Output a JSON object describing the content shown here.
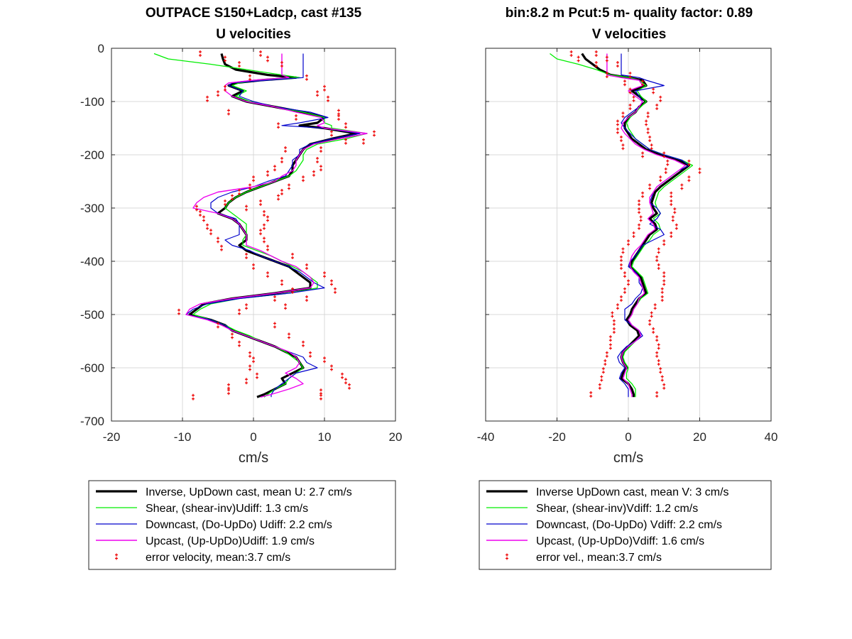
{
  "figure": {
    "left_title_line1": "OUTPACE S150+Ladcp, cast #135",
    "right_title_line1": "bin:8.2 m  Pcut:5 m- quality factor:  0.89"
  },
  "colors": {
    "inverse": "#000000",
    "shear": "#00ee00",
    "downcast": "#0000cc",
    "upcast": "#ee00ee",
    "error": "#ee0000",
    "grid": "#d9d9d9"
  },
  "chart_data": [
    {
      "type": "line",
      "title": "U velocities",
      "xlabel": "cm/s",
      "ylabel": "",
      "xlim": [
        -20,
        20
      ],
      "ylim": [
        -700,
        0
      ],
      "xticks": [
        "-20",
        "-10",
        "0",
        "10",
        "20"
      ],
      "yticks": [
        "0",
        "-100",
        "-200",
        "-300",
        "-400",
        "-500",
        "-600",
        "-700"
      ],
      "grid": true,
      "legend_position": "below",
      "legend": [
        "Inverse, UpDown cast, mean U:  2.7 cm/s",
        "Shear, (shear-inv)Udiff:  1.3 cm/s",
        "Downcast, (Do-UpDo) Udiff:  2.2 cm/s",
        "Upcast, (Up-UpDo)Udiff:  1.9 cm/s",
        "error velocity, mean:3.7 cm/s"
      ],
      "depth": [
        -10,
        -20,
        -30,
        -40,
        -50,
        -55,
        -60,
        -65,
        -70,
        -80,
        -90,
        -100,
        -110,
        -120,
        -130,
        -140,
        -145,
        -150,
        -160,
        -170,
        -180,
        -190,
        -200,
        -210,
        -220,
        -230,
        -240,
        -250,
        -260,
        -270,
        -280,
        -290,
        -300,
        -310,
        -320,
        -330,
        -340,
        -350,
        -360,
        -370,
        -380,
        -390,
        -400,
        -410,
        -420,
        -430,
        -440,
        -450,
        -460,
        -470,
        -480,
        -490,
        -500,
        -510,
        -520,
        -530,
        -540,
        -550,
        -560,
        -570,
        -580,
        -590,
        -600,
        -610,
        -620,
        -630,
        -640,
        -650,
        -655
      ],
      "series": [
        {
          "key": "inverse",
          "values": [
            -4.5,
            -4.3,
            -4.0,
            -2.5,
            2.0,
            6.0,
            1.0,
            -2.5,
            -3.5,
            -1.5,
            -3.0,
            -1.0,
            3.0,
            7.0,
            10.0,
            9.0,
            6.5,
            10.0,
            14.5,
            11.0,
            8.0,
            7.0,
            6.5,
            6.0,
            5.5,
            5.5,
            5.0,
            3.0,
            1.0,
            -1.0,
            -2.5,
            -3.5,
            -4.0,
            -5.0,
            -3.0,
            -2.0,
            -1.5,
            -1.0,
            -1.0,
            -2.0,
            -1.0,
            1.0,
            3.0,
            5.0,
            6.0,
            7.0,
            8.0,
            8.0,
            3.0,
            -3.0,
            -7.0,
            -8.0,
            -9.0,
            -6.0,
            -4.0,
            -3.0,
            -1.0,
            1.0,
            3.0,
            4.5,
            6.0,
            6.5,
            7.0,
            5.5,
            4.0,
            4.5,
            3.0,
            1.5,
            0.5
          ]
        },
        {
          "key": "shear",
          "values": [
            -14.0,
            -12.0,
            -6.0,
            -1.0,
            4.0,
            6.5,
            1.0,
            -2.0,
            -3.0,
            -1.0,
            -2.5,
            -0.5,
            3.0,
            7.0,
            10.0,
            10.0,
            11.0,
            11.0,
            16.0,
            13.0,
            9.0,
            7.5,
            7.0,
            7.0,
            6.5,
            6.0,
            5.0,
            3.0,
            1.0,
            -1.0,
            -2.5,
            -3.5,
            -4.0,
            -3.0,
            -2.0,
            -1.0,
            -1.0,
            -1.0,
            -1.5,
            -1.5,
            0.5,
            2.5,
            4.0,
            5.5,
            7.0,
            8.0,
            9.0,
            9.0,
            5.0,
            -2.0,
            -6.0,
            -7.5,
            -8.5,
            -6.0,
            -4.0,
            -2.5,
            -0.5,
            1.0,
            3.0,
            4.5,
            5.5,
            6.5,
            7.0,
            6.0,
            5.0,
            4.5,
            3.0,
            2.0,
            1.5
          ]
        },
        {
          "key": "downcast",
          "values": [
            7.0,
            7.0,
            7.0,
            7.0,
            7.0,
            7.0,
            2.0,
            -3.0,
            -3.5,
            -1.5,
            -2.0,
            0.0,
            3.0,
            8.0,
            10.5,
            6.5,
            4.0,
            10.0,
            15.0,
            11.0,
            8.0,
            6.5,
            6.5,
            5.5,
            5.5,
            5.0,
            4.5,
            2.0,
            0.0,
            -3.0,
            -5.0,
            -6.0,
            -6.0,
            -5.0,
            -2.5,
            -2.0,
            -2.0,
            -2.0,
            -4.0,
            -3.0,
            -0.5,
            1.0,
            3.0,
            5.0,
            6.5,
            7.5,
            8.5,
            10.0,
            5.0,
            -2.0,
            -6.5,
            -8.5,
            -9.5,
            -6.0,
            -4.0,
            -3.0,
            -1.0,
            1.0,
            3.0,
            5.0,
            7.0,
            7.5,
            9.0,
            6.0,
            5.0,
            4.0,
            3.0,
            2.5,
            2.5
          ]
        },
        {
          "key": "upcast",
          "values": [
            4.0,
            4.0,
            4.0,
            4.0,
            4.0,
            5.0,
            0.0,
            -3.5,
            -4.0,
            -4.0,
            -3.0,
            -1.0,
            3.0,
            6.0,
            9.5,
            10.0,
            9.0,
            10.0,
            16.0,
            12.0,
            8.5,
            7.0,
            6.5,
            6.0,
            6.0,
            5.5,
            4.0,
            3.0,
            0.0,
            -5.0,
            -7.0,
            -8.0,
            -8.5,
            -5.0,
            -3.0,
            -2.0,
            -1.5,
            -1.0,
            -1.0,
            -1.0,
            1.0,
            2.5,
            4.0,
            6.0,
            7.0,
            8.0,
            8.5,
            8.0,
            3.0,
            -3.0,
            -7.5,
            -9.0,
            -9.5,
            -6.5,
            -4.5,
            -3.0,
            -1.0,
            1.0,
            3.0,
            5.0,
            6.0,
            6.5,
            6.0,
            4.5,
            6.0,
            7.0,
            5.0,
            2.5,
            1.0
          ]
        }
      ],
      "error_points": {
        "depth": [
          -10,
          -20,
          -30,
          -55,
          -75,
          -85,
          -95,
          -120,
          -130,
          -145,
          -160,
          -175,
          -190,
          -210,
          -225,
          -235,
          -245,
          -260,
          -270,
          -280,
          -290,
          -300,
          -310,
          -320,
          -335,
          -345,
          -360,
          -375,
          -390,
          -410,
          -425,
          -440,
          -455,
          -470,
          -485,
          -495,
          -520,
          -540,
          -555,
          -575,
          -585,
          -600,
          -615,
          -625,
          -635,
          -645,
          -655
        ],
        "left": [
          -7.5,
          -4.0,
          -2.0,
          -0.5,
          -4.0,
          -5.0,
          -6.5,
          -3.5,
          6.0,
          3.5,
          11.0,
          13.0,
          4.5,
          4.0,
          3.0,
          2.0,
          0.0,
          -0.5,
          -2.0,
          -3.0,
          -4.0,
          -8.0,
          -7.5,
          -7.0,
          -6.5,
          -6.0,
          -5.0,
          -4.5,
          -1.0,
          0.0,
          2.0,
          4.0,
          5.5,
          3.0,
          -1.0,
          -10.5,
          -5.0,
          -3.0,
          -2.0,
          -0.5,
          0.0,
          -0.5,
          0.5,
          -1.0,
          -3.5,
          -3.5,
          -8.5
        ],
        "right": [
          1.0,
          2.0,
          4.0,
          7.5,
          10.0,
          9.0,
          10.5,
          12.0,
          12.0,
          13.0,
          17.0,
          15.5,
          9.5,
          9.0,
          9.5,
          8.5,
          7.0,
          5.0,
          4.0,
          3.5,
          1.0,
          -1.0,
          1.5,
          2.0,
          1.5,
          1.0,
          1.5,
          2.0,
          5.5,
          7.5,
          10.0,
          11.0,
          11.5,
          7.5,
          4.5,
          -2.0,
          3.0,
          5.0,
          7.0,
          8.0,
          10.0,
          11.0,
          12.5,
          13.0,
          13.5,
          9.5,
          9.5
        ]
      }
    },
    {
      "type": "line",
      "title": "V velocities",
      "xlabel": "cm/s",
      "ylabel": "",
      "xlim": [
        -40,
        40
      ],
      "ylim": [
        -700,
        0
      ],
      "xticks": [
        "-40",
        "-20",
        "0",
        "20",
        "40"
      ],
      "yticks": [
        "0",
        "-100",
        "-200",
        "-300",
        "-400",
        "-500",
        "-600",
        "-700"
      ],
      "grid": true,
      "legend_position": "below",
      "legend": [
        "Inverse UpDown cast, mean V:  3 cm/s",
        "Shear, (shear-inv)Vdiff:  1.2 cm/s",
        "Downcast, (Do-UpDo) Vdiff:  2.2 cm/s",
        "Upcast, (Up-UpDo)Vdiff:  1.6 cm/s",
        "error vel., mean:3.7 cm/s"
      ],
      "depth": [
        -10,
        -20,
        -30,
        -40,
        -50,
        -55,
        -60,
        -70,
        -80,
        -90,
        -100,
        -110,
        -120,
        -130,
        -140,
        -150,
        -160,
        -170,
        -180,
        -190,
        -200,
        -210,
        -220,
        -230,
        -240,
        -250,
        -260,
        -270,
        -280,
        -290,
        -300,
        -310,
        -320,
        -330,
        -340,
        -350,
        -360,
        -370,
        -380,
        -390,
        -400,
        -410,
        -420,
        -430,
        -440,
        -450,
        -460,
        -470,
        -480,
        -490,
        -500,
        -510,
        -520,
        -530,
        -540,
        -550,
        -560,
        -570,
        -580,
        -590,
        -600,
        -610,
        -620,
        -630,
        -640,
        -650,
        -655
      ],
      "series": [
        {
          "key": "inverse",
          "values": [
            -13.0,
            -12.0,
            -10.0,
            -8.0,
            -5.0,
            0.0,
            4.0,
            5.0,
            1.0,
            3.0,
            5.0,
            3.0,
            2.0,
            0.0,
            -1.0,
            -1.0,
            0.0,
            1.0,
            3.0,
            5.0,
            9.0,
            14.0,
            17.0,
            15.0,
            13.0,
            11.0,
            9.0,
            7.5,
            7.0,
            6.5,
            7.0,
            8.0,
            6.0,
            7.5,
            8.0,
            6.0,
            5.0,
            4.0,
            3.0,
            2.0,
            1.0,
            0.5,
            2.0,
            3.5,
            4.0,
            4.5,
            5.0,
            3.0,
            2.0,
            1.0,
            0.5,
            -0.5,
            0.5,
            2.5,
            3.0,
            1.5,
            0.0,
            -1.5,
            -2.0,
            -1.5,
            -0.5,
            -1.5,
            -2.0,
            0.0,
            1.0,
            1.5,
            1.5
          ]
        },
        {
          "key": "shear",
          "values": [
            -22.0,
            -20.0,
            -14.0,
            -9.0,
            -5.0,
            0.5,
            3.0,
            5.0,
            2.5,
            3.5,
            5.0,
            3.5,
            2.0,
            0.5,
            -0.5,
            0.0,
            1.0,
            2.0,
            4.0,
            6.0,
            10.0,
            15.0,
            18.0,
            16.0,
            14.0,
            12.0,
            10.0,
            8.5,
            8.0,
            7.5,
            8.0,
            9.0,
            7.0,
            8.5,
            9.0,
            7.0,
            6.0,
            4.5,
            3.5,
            2.5,
            1.5,
            1.0,
            2.5,
            4.0,
            4.5,
            5.0,
            5.5,
            3.5,
            2.5,
            1.5,
            1.0,
            0.0,
            1.0,
            3.0,
            3.5,
            2.0,
            0.5,
            -1.0,
            -1.5,
            -1.0,
            0.0,
            -0.5,
            -0.5,
            1.0,
            2.0,
            2.0,
            2.0
          ]
        },
        {
          "key": "downcast",
          "values": [
            -2.0,
            -2.0,
            -2.0,
            -2.0,
            -2.0,
            3.0,
            5.0,
            10.0,
            2.0,
            3.0,
            4.0,
            3.0,
            1.0,
            -1.0,
            -2.0,
            -1.0,
            0.5,
            2.0,
            4.0,
            6.0,
            10.0,
            15.0,
            17.0,
            14.0,
            12.0,
            10.0,
            8.0,
            7.0,
            6.5,
            6.0,
            8.0,
            9.0,
            8.0,
            6.0,
            9.0,
            10.0,
            7.0,
            4.0,
            3.0,
            2.0,
            0.5,
            0.0,
            2.0,
            3.0,
            3.0,
            4.0,
            3.5,
            2.0,
            1.0,
            -1.0,
            -1.0,
            -1.0,
            1.0,
            3.0,
            4.0,
            2.0,
            -0.5,
            -2.0,
            -3.0,
            -2.5,
            -1.0,
            -2.0,
            -2.5,
            -1.0,
            0.0,
            0.0,
            0.0
          ]
        },
        {
          "key": "upcast",
          "values": [
            -6.0,
            -6.0,
            -6.0,
            -6.0,
            -6.0,
            -2.0,
            3.0,
            4.0,
            0.0,
            2.0,
            4.0,
            3.0,
            2.0,
            0.0,
            -1.5,
            -2.0,
            -1.0,
            0.5,
            2.0,
            4.5,
            8.0,
            13.0,
            16.0,
            14.0,
            12.0,
            10.0,
            8.0,
            7.0,
            6.0,
            6.0,
            6.5,
            7.0,
            5.5,
            7.0,
            7.5,
            5.5,
            4.5,
            3.5,
            2.0,
            1.0,
            0.5,
            0.5,
            1.5,
            3.0,
            3.5,
            4.0,
            4.5,
            3.0,
            2.5,
            1.5,
            1.0,
            0.0,
            1.0,
            3.0,
            3.5,
            2.0,
            0.0,
            -1.5,
            -2.0,
            -1.5,
            -0.5,
            -1.0,
            -1.5,
            0.0,
            0.5,
            1.0,
            1.0
          ]
        }
      ],
      "error_points": {
        "depth": [
          -10,
          -20,
          -30,
          -50,
          -65,
          -80,
          -95,
          -110,
          -125,
          -140,
          -155,
          -170,
          -185,
          -200,
          -215,
          -230,
          -245,
          -260,
          -275,
          -290,
          -305,
          -320,
          -335,
          -350,
          -365,
          -380,
          -395,
          -410,
          -425,
          -440,
          -455,
          -470,
          -485,
          -500,
          -515,
          -530,
          -545,
          -560,
          -575,
          -590,
          -605,
          -620,
          -635,
          -650
        ],
        "left": [
          -16.0,
          -14.0,
          -9.0,
          -6.0,
          -1.0,
          0.5,
          1.5,
          0.5,
          -1.5,
          -3.0,
          -3.0,
          -2.0,
          -1.5,
          4.0,
          11.0,
          10.5,
          9.0,
          6.0,
          4.0,
          3.0,
          3.0,
          3.5,
          3.0,
          1.5,
          0.0,
          -1.5,
          -2.0,
          -2.0,
          -1.0,
          0.0,
          -1.0,
          -2.0,
          -3.0,
          -4.5,
          -4.0,
          -4.0,
          -5.0,
          -5.0,
          -6.0,
          -6.5,
          -7.0,
          -7.5,
          -8.0,
          -10.5
        ],
        "right": [
          -9.0,
          -6.0,
          -3.0,
          0.5,
          4.0,
          7.0,
          9.0,
          8.0,
          5.5,
          5.0,
          5.5,
          6.0,
          6.5,
          10.0,
          17.0,
          20.0,
          17.0,
          15.0,
          12.0,
          12.0,
          13.0,
          12.5,
          13.5,
          12.0,
          10.0,
          8.5,
          8.0,
          8.5,
          10.0,
          10.0,
          9.5,
          9.5,
          7.5,
          6.5,
          6.0,
          7.0,
          8.0,
          8.5,
          8.0,
          8.5,
          9.0,
          9.5,
          10.0,
          8.0
        ]
      }
    }
  ]
}
